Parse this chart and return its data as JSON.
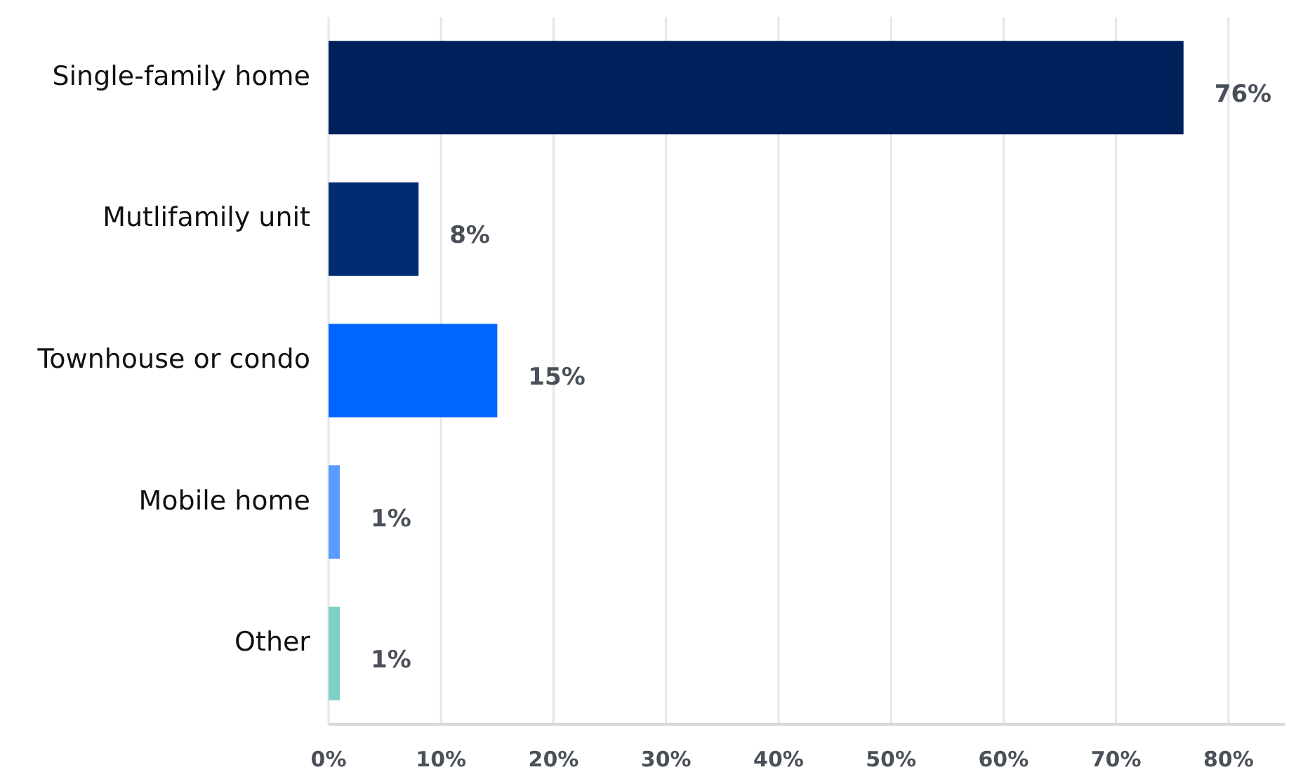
{
  "chart_data": {
    "type": "bar",
    "orientation": "horizontal",
    "categories": [
      "Single-family home",
      "Mutlifamily unit",
      "Townhouse or condo",
      "Mobile home",
      "Other"
    ],
    "values": [
      76,
      8,
      15,
      1,
      1
    ],
    "colors": [
      "#00205b",
      "#002d72",
      "#0066ff",
      "#5b9bff",
      "#7fcfc4"
    ],
    "data_labels": true,
    "value_labels": [
      "76%",
      "8%",
      "15%",
      "1%",
      "1%"
    ],
    "xlim": [
      0,
      85
    ],
    "xticks": [
      {
        "value": 0,
        "label": "0%"
      },
      {
        "value": 10,
        "label": "10%"
      },
      {
        "value": 20,
        "label": "20%"
      },
      {
        "value": 30,
        "label": "30%"
      },
      {
        "value": 40,
        "label": "40%"
      },
      {
        "value": 50,
        "label": "50%"
      },
      {
        "value": 60,
        "label": "60%"
      },
      {
        "value": 70,
        "label": "70%"
      },
      {
        "value": 80,
        "label": "80%"
      }
    ],
    "grid": "x"
  }
}
